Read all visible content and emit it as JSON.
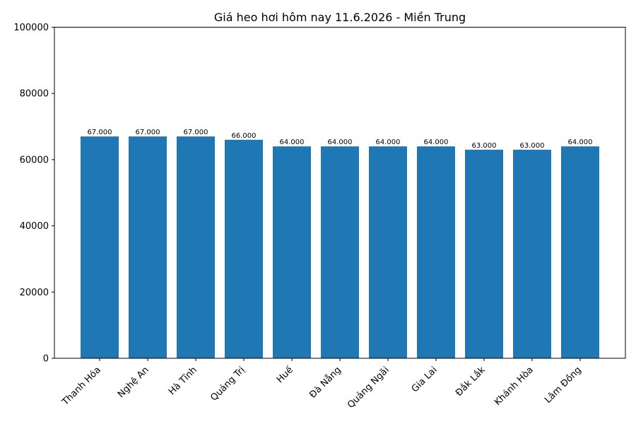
{
  "chart_data": {
    "type": "bar",
    "title": "Giá heo hơi hôm nay 11.6.2026 - Miền Trung",
    "xlabel": "",
    "ylabel": "",
    "categories": [
      "Thanh Hóa",
      "Nghệ An",
      "Hà Tĩnh",
      "Quảng Trị",
      "Huế",
      "Đà Nẵng",
      "Quảng Ngãi",
      "Gia Lai",
      "Đắk Lắk",
      "Khánh Hòa",
      "Lâm Đồng"
    ],
    "values": [
      67000,
      67000,
      67000,
      66000,
      64000,
      64000,
      64000,
      64000,
      63000,
      63000,
      64000
    ],
    "value_labels": [
      "67.000",
      "67.000",
      "67.000",
      "66.000",
      "64.000",
      "64.000",
      "64.000",
      "64.000",
      "63.000",
      "63.000",
      "64.000"
    ],
    "ylim": [
      0,
      100000
    ],
    "yticks": [
      0,
      20000,
      40000,
      60000,
      80000,
      100000
    ],
    "ytick_labels": [
      "0",
      "20000",
      "40000",
      "60000",
      "80000",
      "100000"
    ],
    "grid": false,
    "legend": "none",
    "bar_color": "#1f77b4"
  }
}
